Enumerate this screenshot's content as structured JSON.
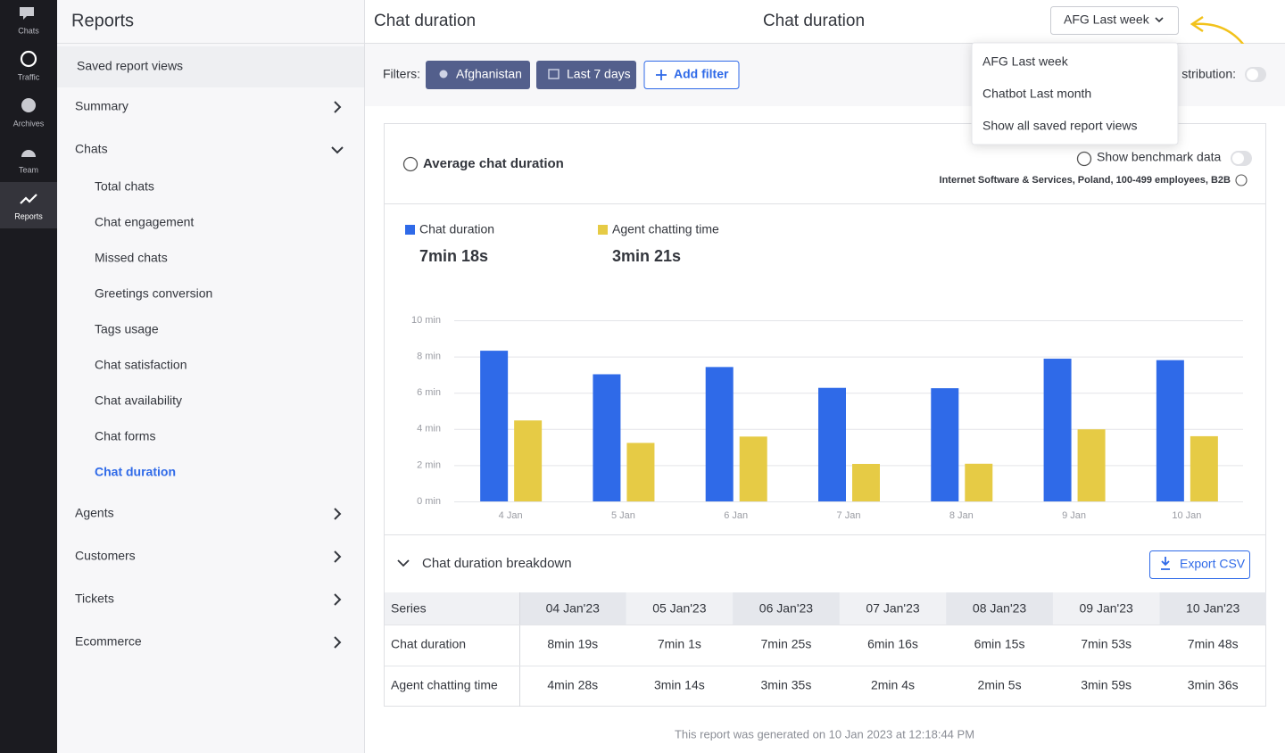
{
  "nav": [
    "Chats",
    "Traffic",
    "Archives",
    "Team",
    "Reports"
  ],
  "sidebar": {
    "title": "Reports",
    "saved": "Saved report views",
    "sections": [
      {
        "label": "Summary"
      },
      {
        "label": "Chats",
        "items": [
          "Total chats",
          "Chat engagement",
          "Missed chats",
          "Greetings conversion",
          "Tags usage",
          "Chat satisfaction",
          "Chat availability",
          "Chat forms",
          "Chat duration"
        ]
      },
      {
        "label": "Agents"
      },
      {
        "label": "Customers"
      },
      {
        "label": "Tickets"
      },
      {
        "label": "Ecommerce"
      }
    ],
    "active_item": 8
  },
  "header": {
    "title": "Chat duration",
    "center_title": "Chat duration",
    "saved_view": "AFG Last week"
  },
  "filters": {
    "label": "Filters:",
    "chips": [
      "Afghanistan",
      "Last 7 days"
    ],
    "add": "Add filter",
    "distribution": "stribution:"
  },
  "menu": [
    "AFG Last week",
    "Chatbot Last month",
    "Show all saved report views"
  ],
  "card": {
    "title": "Average chat duration",
    "benchmark": "Show benchmark data",
    "benchmark_note": "Internet Software & Services, Poland, 100-499 employees, B2B"
  },
  "chart_data": {
    "type": "bar",
    "categories": [
      "4 Jan",
      "5 Jan",
      "6 Jan",
      "7 Jan",
      "8 Jan",
      "9 Jan",
      "10 Jan"
    ],
    "series": [
      {
        "name": "Chat duration",
        "color": "#2f6ae8",
        "total_label": "7min 18s",
        "values": [
          8.32,
          7.02,
          7.42,
          6.27,
          6.25,
          7.88,
          7.8
        ]
      },
      {
        "name": "Agent chatting time",
        "color": "#e6cb45",
        "total_label": "3min 21s",
        "values": [
          4.47,
          3.23,
          3.58,
          2.07,
          2.08,
          3.98,
          3.6
        ]
      }
    ],
    "ylim": [
      0,
      10
    ],
    "yticks": [
      {
        "value": 0,
        "label": "0 min"
      },
      {
        "value": 2,
        "label": "2 min"
      },
      {
        "value": 4,
        "label": "4 min"
      },
      {
        "value": 6,
        "label": "6 min"
      },
      {
        "value": 8,
        "label": "8 min"
      },
      {
        "value": 10,
        "label": "10 min"
      }
    ],
    "grid": true
  },
  "breakdown": {
    "title": "Chat duration breakdown",
    "export": "Export CSV",
    "header": [
      "Series",
      "04 Jan'23",
      "05 Jan'23",
      "06 Jan'23",
      "07 Jan'23",
      "08 Jan'23",
      "09 Jan'23",
      "10 Jan'23"
    ],
    "rows": [
      [
        "Chat duration",
        "8min 19s",
        "7min 1s",
        "7min 25s",
        "6min 16s",
        "6min 15s",
        "7min 53s",
        "7min 48s"
      ],
      [
        "Agent chatting time",
        "4min 28s",
        "3min 14s",
        "3min 35s",
        "2min 4s",
        "2min 5s",
        "3min 59s",
        "3min 36s"
      ]
    ]
  },
  "footer": "This report was generated on 10 Jan 2023 at 12:18:44 PM"
}
